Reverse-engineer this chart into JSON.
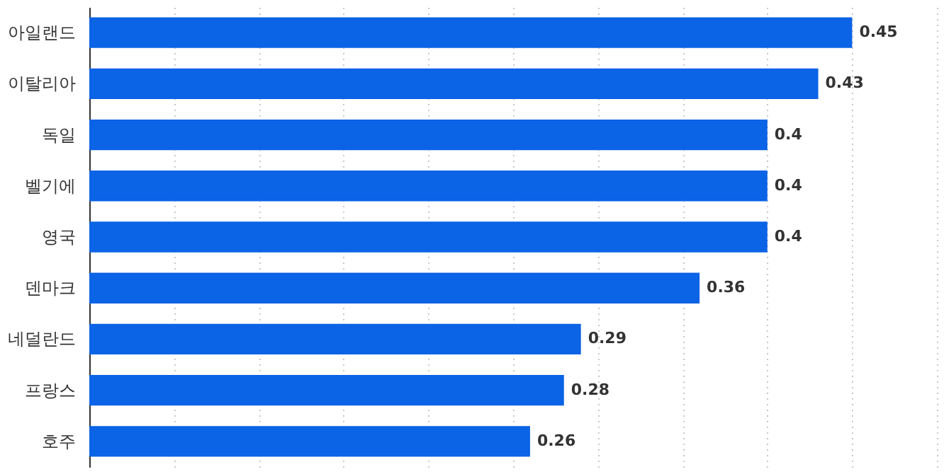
{
  "chart_data": {
    "type": "bar",
    "orientation": "horizontal",
    "categories": [
      "아일랜드",
      "이탈리아",
      "독일",
      "벨기에",
      "영국",
      "덴마크",
      "네덜란드",
      "프랑스",
      "호주"
    ],
    "values": [
      0.45,
      0.43,
      0.4,
      0.4,
      0.4,
      0.36,
      0.29,
      0.28,
      0.26
    ],
    "color": "#0b63e5",
    "data_labels": true,
    "grid": "x",
    "tick_labels": "y",
    "xlim": [
      0,
      0.5
    ],
    "xticks": [
      {
        "value": 0,
        "label": null
      },
      {
        "value": 0.05,
        "label": null
      },
      {
        "value": 0.1,
        "label": null
      },
      {
        "value": 0.15,
        "label": null
      },
      {
        "value": 0.2,
        "label": null
      },
      {
        "value": 0.25,
        "label": null
      },
      {
        "value": 0.3,
        "label": null
      },
      {
        "value": 0.35,
        "label": null
      },
      {
        "value": 0.4,
        "label": null
      },
      {
        "value": 0.45,
        "label": null
      },
      {
        "value": 0.5,
        "label": null
      }
    ]
  }
}
